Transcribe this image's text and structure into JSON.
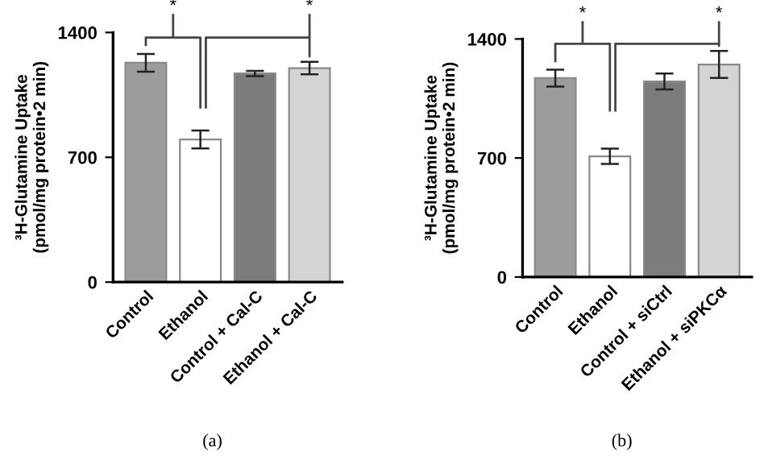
{
  "chart_data": [
    {
      "type": "bar",
      "ylabel": "³H-Glutamine Uptake\n(pmol/mg protein•2 min)",
      "categories": [
        "Control",
        "Ethanol",
        "Control + Cal-C",
        "Ethanol + Cal-C"
      ],
      "values": [
        1230,
        800,
        1170,
        1200
      ],
      "errors": [
        50,
        50,
        15,
        35
      ],
      "colors": [
        "#9c9c9c",
        "#ffffff",
        "#7c7c7c",
        "#d4d4d4"
      ],
      "ylim": [
        0,
        1400
      ],
      "yticks": [
        0,
        700,
        1400
      ],
      "grid": false,
      "annotations": [
        "*",
        "*",
        "(a)"
      ]
    },
    {
      "type": "bar",
      "ylabel": "³H-Glutamine Uptake\n(pmol/mg protein•2 min)",
      "categories": [
        "Control",
        "Ethanol",
        "Control + siCtrl",
        "Ethanol + siPKCα"
      ],
      "values": [
        1170,
        710,
        1150,
        1250
      ],
      "errors": [
        50,
        45,
        47,
        79
      ],
      "colors": [
        "#9c9c9c",
        "#ffffff",
        "#7c7c7c",
        "#d4d4d4"
      ],
      "ylim": [
        0,
        1400
      ],
      "yticks": [
        0,
        700,
        1400
      ],
      "grid": false,
      "annotations": [
        "*",
        "*",
        "(b)"
      ]
    }
  ]
}
